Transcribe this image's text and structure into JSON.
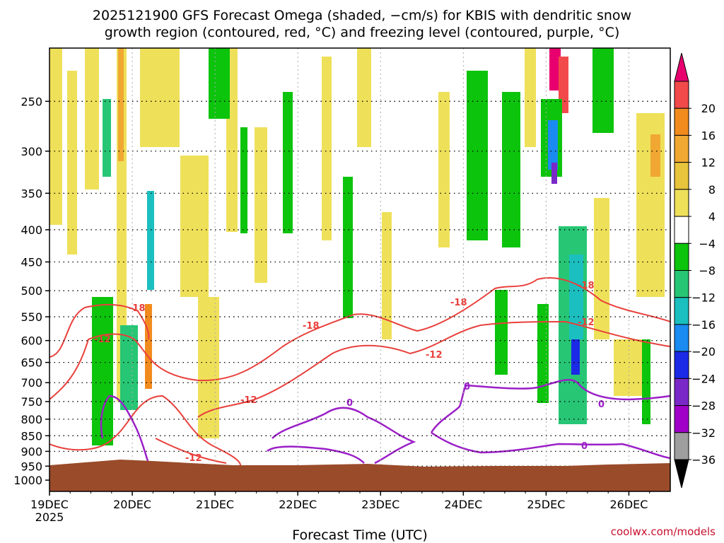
{
  "title_line1": "2025121900 GFS Forecast Omega (shaded, −cm/s) for KBIS with dendritic snow",
  "title_line2": "growth region (contoured, red, °C) and freezing level (contoured, purple, °C)",
  "xlabel": "Forecast Time (UTC)",
  "credit": "coolwx.com/models",
  "chart_data": {
    "type": "heatmap",
    "title": "2025121900 GFS Forecast Omega (shaded, −cm/s) for KBIS with dendritic snow growth region (contoured, red, °C) and freezing level (contoured, purple, °C)",
    "xlabel": "Forecast Time (UTC)",
    "ylabel": "",
    "y_scale": "log-pressure (hPa, inverted)",
    "x_ticks": [
      "19DEC",
      "20DEC",
      "21DEC",
      "22DEC",
      "23DEC",
      "24DEC",
      "25DEC",
      "26DEC"
    ],
    "x_tick_sub": "2025",
    "y_ticks": [
      250,
      300,
      350,
      400,
      450,
      500,
      550,
      600,
      650,
      700,
      750,
      800,
      850,
      900,
      950,
      1000
    ],
    "y_tick_labels": [
      "250",
      "300",
      "350",
      "400",
      "450",
      "500",
      "550",
      "600",
      "650",
      "700",
      "750",
      "800",
      "850",
      "900",
      "950",
      "1000"
    ],
    "xlim_days": [
      0,
      7.5
    ],
    "colorbar": {
      "labels": [
        "20",
        "16",
        "12",
        "8",
        "4",
        "−4",
        "−8",
        "−12",
        "−16",
        "−20",
        "−24",
        "−28",
        "−32",
        "−36"
      ],
      "colors_top_to_bottom": [
        "#e8006e",
        "#f24a4a",
        "#f28b1e",
        "#f0a832",
        "#e8c33c",
        "#efe05a",
        "#ffffff",
        "#0cc40c",
        "#27c675",
        "#1bbfbf",
        "#1a8bf0",
        "#1a2ae6",
        "#7a28c8",
        "#a000c8",
        "#9e9e9e",
        "#000000"
      ]
    },
    "contours": {
      "dgz_labels": [
        "-18",
        "-12",
        "-18",
        "-12",
        "-12",
        "-18",
        "-12",
        "-18",
        "-12"
      ],
      "freezing_labels": [
        "0",
        "0",
        "0",
        "0"
      ]
    },
    "ground_color": "#9a4b2a"
  }
}
